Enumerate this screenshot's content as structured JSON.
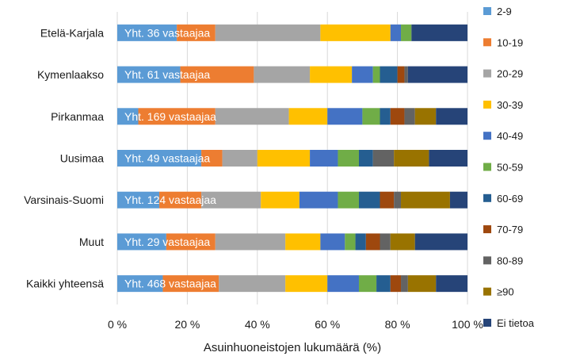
{
  "chart_data": {
    "type": "bar",
    "orientation": "horizontal",
    "stacked": "100%",
    "title": "",
    "xlabel": "Asuinhuoneistojen lukumäärä (%)",
    "ylabel": "",
    "xlim": [
      0,
      100
    ],
    "x_ticks": [
      "0 %",
      "20 %",
      "40 %",
      "60 %",
      "80 %",
      "100 %"
    ],
    "legend_position": "right",
    "grid": "vertical",
    "categories": [
      "Etelä-Karjala",
      "Kymenlaakso",
      "Pirkanmaa",
      "Uusimaa",
      "Varsinais-Suomi",
      "Muut",
      "Kaikki yhteensä"
    ],
    "data_labels": [
      "Yht. 36 vastaajaa",
      "Yht. 61 vastaajaa",
      "Yht. 169 vastaajaa",
      "Yht. 49 vastaajaa",
      "Yht. 124 vastaajaa",
      "Yht. 29 vastaajaa",
      "Yht. 468 vastaajaa"
    ],
    "series": [
      {
        "name": "2-9",
        "color": "#5b9bd5",
        "values": [
          17,
          18,
          6,
          24,
          12,
          14,
          13
        ]
      },
      {
        "name": "10-19",
        "color": "#ed7d31",
        "values": [
          11,
          21,
          22,
          6,
          12,
          14,
          16
        ]
      },
      {
        "name": "20-29",
        "color": "#a5a5a5",
        "values": [
          30,
          16,
          21,
          10,
          17,
          20,
          19
        ]
      },
      {
        "name": "30-39",
        "color": "#ffc000",
        "values": [
          20,
          12,
          11,
          15,
          11,
          10,
          12
        ]
      },
      {
        "name": "40-49",
        "color": "#4472c4",
        "values": [
          3,
          6,
          10,
          8,
          11,
          7,
          9
        ]
      },
      {
        "name": "50-59",
        "color": "#70ad47",
        "values": [
          3,
          2,
          5,
          6,
          6,
          3,
          5
        ]
      },
      {
        "name": "60-69",
        "color": "#255e91",
        "values": [
          0,
          5,
          3,
          4,
          6,
          3,
          4
        ]
      },
      {
        "name": "70-79",
        "color": "#9e480e",
        "values": [
          0,
          2,
          4,
          0,
          4,
          4,
          3
        ]
      },
      {
        "name": "80-89",
        "color": "#636363",
        "values": [
          0,
          1,
          3,
          6,
          2,
          3,
          2
        ]
      },
      {
        "name": "≥90",
        "color": "#997300",
        "values": [
          0,
          0,
          6,
          10,
          14,
          7,
          8
        ]
      },
      {
        "name": "Ei tietoa",
        "color": "#264478",
        "values": [
          16,
          17,
          9,
          11,
          5,
          15,
          9
        ]
      }
    ]
  }
}
